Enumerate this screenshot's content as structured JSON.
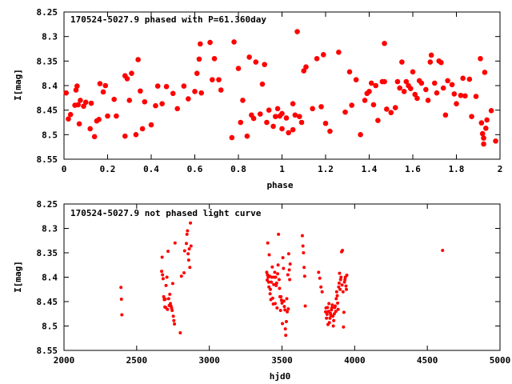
{
  "chart_data": [
    {
      "type": "scatter",
      "title": "170524-5027.9 phased with P=61.360day",
      "xlabel": "phase",
      "ylabel": "I[mag]",
      "xlim": [
        0,
        2
      ],
      "ylim": [
        8.25,
        8.55
      ],
      "y_inverted": true,
      "xticks": [
        "0",
        "0.2",
        "0.4",
        "0.6",
        "0.8",
        "1",
        "1.2",
        "1.4",
        "1.6",
        "1.8",
        "2"
      ],
      "yticks": [
        "8.25",
        "8.3",
        "8.35",
        "8.4",
        "8.45",
        "8.5",
        "8.55"
      ],
      "marker_color": "#ff0000",
      "marker": "filled-circle-large",
      "points": [
        [
          0.01,
          8.415
        ],
        [
          0.02,
          8.468
        ],
        [
          0.03,
          8.459
        ],
        [
          0.05,
          8.44
        ],
        [
          0.055,
          8.409
        ],
        [
          0.06,
          8.401
        ],
        [
          0.065,
          8.439
        ],
        [
          0.07,
          8.478
        ],
        [
          0.075,
          8.43
        ],
        [
          0.09,
          8.442
        ],
        [
          0.1,
          8.434
        ],
        [
          0.12,
          8.488
        ],
        [
          0.125,
          8.436
        ],
        [
          0.14,
          8.504
        ],
        [
          0.15,
          8.472
        ],
        [
          0.16,
          8.469
        ],
        [
          0.165,
          8.396
        ],
        [
          0.18,
          8.413
        ],
        [
          0.19,
          8.4
        ],
        [
          0.2,
          8.462
        ],
        [
          0.23,
          8.428
        ],
        [
          0.24,
          8.462
        ],
        [
          0.28,
          8.503
        ],
        [
          0.28,
          8.38
        ],
        [
          0.29,
          8.386
        ],
        [
          0.3,
          8.43
        ],
        [
          0.31,
          8.375
        ],
        [
          0.33,
          8.5
        ],
        [
          0.34,
          8.347
        ],
        [
          0.35,
          8.411
        ],
        [
          0.36,
          8.488
        ],
        [
          0.37,
          8.433
        ],
        [
          0.4,
          8.48
        ],
        [
          0.42,
          8.441
        ],
        [
          0.43,
          8.401
        ],
        [
          0.45,
          8.437
        ],
        [
          0.47,
          8.402
        ],
        [
          0.5,
          8.416
        ],
        [
          0.52,
          8.447
        ],
        [
          0.55,
          8.401
        ],
        [
          0.57,
          8.427
        ],
        [
          0.6,
          8.412
        ],
        [
          0.61,
          8.375
        ],
        [
          0.62,
          8.346
        ],
        [
          0.625,
          8.315
        ],
        [
          0.63,
          8.415
        ],
        [
          0.67,
          8.312
        ],
        [
          0.68,
          8.388
        ],
        [
          0.69,
          8.345
        ],
        [
          0.71,
          8.388
        ],
        [
          0.72,
          8.409
        ],
        [
          0.77,
          8.506
        ],
        [
          0.78,
          8.311
        ],
        [
          0.8,
          8.365
        ],
        [
          0.81,
          8.475
        ],
        [
          0.82,
          8.43
        ],
        [
          0.84,
          8.503
        ],
        [
          0.85,
          8.342
        ],
        [
          0.86,
          8.46
        ],
        [
          0.87,
          8.467
        ],
        [
          0.88,
          8.352
        ],
        [
          0.9,
          8.458
        ],
        [
          0.91,
          8.397
        ],
        [
          0.92,
          8.357
        ],
        [
          0.93,
          8.475
        ],
        [
          0.94,
          8.45
        ],
        [
          0.96,
          8.483
        ],
        [
          0.97,
          8.463
        ],
        [
          0.98,
          8.447
        ],
        [
          0.99,
          8.462
        ],
        [
          1.0,
          8.457
        ],
        [
          1.0,
          8.488
        ],
        [
          1.02,
          8.466
        ],
        [
          1.03,
          8.496
        ],
        [
          1.05,
          8.49
        ],
        [
          1.05,
          8.437
        ],
        [
          1.06,
          8.46
        ],
        [
          1.07,
          8.29
        ],
        [
          1.08,
          8.463
        ],
        [
          1.09,
          8.475
        ],
        [
          1.1,
          8.37
        ],
        [
          1.11,
          8.362
        ],
        [
          1.14,
          8.447
        ],
        [
          1.16,
          8.345
        ],
        [
          1.18,
          8.443
        ],
        [
          1.19,
          8.337
        ],
        [
          1.2,
          8.477
        ],
        [
          1.22,
          8.493
        ],
        [
          1.26,
          8.332
        ],
        [
          1.29,
          8.454
        ],
        [
          1.31,
          8.372
        ],
        [
          1.32,
          8.44
        ],
        [
          1.34,
          8.388
        ],
        [
          1.36,
          8.5
        ],
        [
          1.38,
          8.43
        ],
        [
          1.39,
          8.416
        ],
        [
          1.4,
          8.412
        ],
        [
          1.41,
          8.395
        ],
        [
          1.42,
          8.439
        ],
        [
          1.43,
          8.4
        ],
        [
          1.44,
          8.471
        ],
        [
          1.46,
          8.392
        ],
        [
          1.47,
          8.314
        ],
        [
          1.47,
          8.392
        ],
        [
          1.48,
          8.448
        ],
        [
          1.5,
          8.455
        ],
        [
          1.52,
          8.445
        ],
        [
          1.53,
          8.392
        ],
        [
          1.54,
          8.405
        ],
        [
          1.55,
          8.352
        ],
        [
          1.56,
          8.412
        ],
        [
          1.57,
          8.392
        ],
        [
          1.58,
          8.4
        ],
        [
          1.59,
          8.406
        ],
        [
          1.6,
          8.372
        ],
        [
          1.61,
          8.418
        ],
        [
          1.62,
          8.426
        ],
        [
          1.63,
          8.39
        ],
        [
          1.64,
          8.395
        ],
        [
          1.66,
          8.408
        ],
        [
          1.67,
          8.43
        ],
        [
          1.68,
          8.352
        ],
        [
          1.685,
          8.338
        ],
        [
          1.7,
          8.395
        ],
        [
          1.71,
          8.415
        ],
        [
          1.72,
          8.35
        ],
        [
          1.73,
          8.353
        ],
        [
          1.74,
          8.405
        ],
        [
          1.75,
          8.46
        ],
        [
          1.76,
          8.39
        ],
        [
          1.78,
          8.398
        ],
        [
          1.79,
          8.417
        ],
        [
          1.8,
          8.437
        ],
        [
          1.82,
          8.42
        ],
        [
          1.83,
          8.385
        ],
        [
          1.84,
          8.421
        ],
        [
          1.86,
          8.387
        ],
        [
          1.87,
          8.463
        ],
        [
          1.89,
          8.422
        ],
        [
          1.91,
          8.345
        ],
        [
          1.915,
          8.476
        ],
        [
          1.92,
          8.498
        ],
        [
          1.925,
          8.507
        ],
        [
          1.925,
          8.519
        ],
        [
          1.93,
          8.373
        ],
        [
          1.935,
          8.487
        ],
        [
          1.94,
          8.47
        ],
        [
          1.96,
          8.451
        ],
        [
          1.98,
          8.513
        ]
      ]
    },
    {
      "type": "scatter",
      "title": "170524-5027.9 not phased light curve",
      "xlabel": "hjd0",
      "ylabel": "I[mag]",
      "xlim": [
        2000,
        5000
      ],
      "ylim": [
        8.25,
        8.55
      ],
      "y_inverted": true,
      "xticks": [
        "2000",
        "2500",
        "3000",
        "3500",
        "4000",
        "4500",
        "5000"
      ],
      "yticks": [
        "8.25",
        "8.3",
        "8.35",
        "8.4",
        "8.45",
        "8.5",
        "8.55"
      ],
      "marker_color": "#ff0000",
      "marker": "filled-circle-small",
      "points": [
        [
          2392,
          8.421
        ],
        [
          2395,
          8.445
        ],
        [
          2398,
          8.477
        ],
        [
          2672,
          8.388
        ],
        [
          2675,
          8.359
        ],
        [
          2678,
          8.395
        ],
        [
          2682,
          8.403
        ],
        [
          2686,
          8.44
        ],
        [
          2690,
          8.446
        ],
        [
          2694,
          8.461
        ],
        [
          2697,
          8.445
        ],
        [
          2700,
          8.462
        ],
        [
          2702,
          8.417
        ],
        [
          2708,
          8.4
        ],
        [
          2712,
          8.466
        ],
        [
          2716,
          8.347
        ],
        [
          2720,
          8.444
        ],
        [
          2724,
          8.458
        ],
        [
          2728,
          8.435
        ],
        [
          2732,
          8.454
        ],
        [
          2736,
          8.459
        ],
        [
          2740,
          8.463
        ],
        [
          2744,
          8.468
        ],
        [
          2748,
          8.413
        ],
        [
          2752,
          8.48
        ],
        [
          2756,
          8.489
        ],
        [
          2760,
          8.496
        ],
        [
          2764,
          8.33
        ],
        [
          2800,
          8.514
        ],
        [
          2808,
          8.398
        ],
        [
          2826,
          8.391
        ],
        [
          2830,
          8.346
        ],
        [
          2842,
          8.331
        ],
        [
          2846,
          8.312
        ],
        [
          2850,
          8.305
        ],
        [
          2854,
          8.352
        ],
        [
          2858,
          8.365
        ],
        [
          2862,
          8.342
        ],
        [
          2866,
          8.38
        ],
        [
          2870,
          8.289
        ],
        [
          2874,
          8.336
        ],
        [
          3395,
          8.39
        ],
        [
          3398,
          8.406
        ],
        [
          3400,
          8.395
        ],
        [
          3402,
          8.33
        ],
        [
          3405,
          8.4
        ],
        [
          3408,
          8.41
        ],
        [
          3410,
          8.42
        ],
        [
          3412,
          8.354
        ],
        [
          3415,
          8.398
        ],
        [
          3418,
          8.434
        ],
        [
          3420,
          8.425
        ],
        [
          3423,
          8.446
        ],
        [
          3426,
          8.41
        ],
        [
          3430,
          8.4
        ],
        [
          3433,
          8.379
        ],
        [
          3436,
          8.443
        ],
        [
          3440,
          8.455
        ],
        [
          3443,
          8.415
        ],
        [
          3446,
          8.4
        ],
        [
          3450,
          8.39
        ],
        [
          3453,
          8.454
        ],
        [
          3456,
          8.4
        ],
        [
          3460,
          8.417
        ],
        [
          3463,
          8.412
        ],
        [
          3466,
          8.463
        ],
        [
          3470,
          8.393
        ],
        [
          3473,
          8.375
        ],
        [
          3476,
          8.312
        ],
        [
          3480,
          8.405
        ],
        [
          3483,
          8.423
        ],
        [
          3486,
          8.44
        ],
        [
          3490,
          8.468
        ],
        [
          3493,
          8.44
        ],
        [
          3496,
          8.447
        ],
        [
          3500,
          8.453
        ],
        [
          3503,
          8.495
        ],
        [
          3506,
          8.36
        ],
        [
          3510,
          8.382
        ],
        [
          3513,
          8.449
        ],
        [
          3516,
          8.46
        ],
        [
          3520,
          8.467
        ],
        [
          3523,
          8.506
        ],
        [
          3526,
          8.519
        ],
        [
          3530,
          8.491
        ],
        [
          3533,
          8.444
        ],
        [
          3536,
          8.471
        ],
        [
          3540,
          8.395
        ],
        [
          3543,
          8.465
        ],
        [
          3546,
          8.352
        ],
        [
          3550,
          8.385
        ],
        [
          3553,
          8.405
        ],
        [
          3556,
          8.373
        ],
        [
          3640,
          8.315
        ],
        [
          3644,
          8.336
        ],
        [
          3648,
          8.35
        ],
        [
          3652,
          8.38
        ],
        [
          3656,
          8.398
        ],
        [
          3660,
          8.459
        ],
        [
          3752,
          8.39
        ],
        [
          3760,
          8.402
        ],
        [
          3768,
          8.42
        ],
        [
          3776,
          8.43
        ],
        [
          3800,
          8.471
        ],
        [
          3803,
          8.463
        ],
        [
          3806,
          8.484
        ],
        [
          3810,
          8.476
        ],
        [
          3813,
          8.462
        ],
        [
          3816,
          8.497
        ],
        [
          3820,
          8.47
        ],
        [
          3823,
          8.454
        ],
        [
          3826,
          8.493
        ],
        [
          3830,
          8.484
        ],
        [
          3833,
          8.474
        ],
        [
          3836,
          8.478
        ],
        [
          3840,
          8.467
        ],
        [
          3843,
          8.463
        ],
        [
          3846,
          8.457
        ],
        [
          3850,
          8.48
        ],
        [
          3853,
          8.5
        ],
        [
          3856,
          8.489
        ],
        [
          3860,
          8.475
        ],
        [
          3863,
          8.462
        ],
        [
          3866,
          8.459
        ],
        [
          3870,
          8.47
        ],
        [
          3873,
          8.444
        ],
        [
          3876,
          8.43
        ],
        [
          3880,
          8.438
        ],
        [
          3883,
          8.453
        ],
        [
          3886,
          8.466
        ],
        [
          3890,
          8.42
        ],
        [
          3893,
          8.412
        ],
        [
          3896,
          8.392
        ],
        [
          3900,
          8.425
        ],
        [
          3903,
          8.405
        ],
        [
          3906,
          8.4
        ],
        [
          3910,
          8.348
        ],
        [
          3913,
          8.416
        ],
        [
          3916,
          8.345
        ],
        [
          3920,
          8.43
        ],
        [
          3923,
          8.502
        ],
        [
          3926,
          8.472
        ],
        [
          3930,
          8.41
        ],
        [
          3933,
          8.405
        ],
        [
          3936,
          8.4
        ],
        [
          3940,
          8.418
        ],
        [
          3943,
          8.425
        ],
        [
          3946,
          8.396
        ],
        [
          4605,
          8.345
        ]
      ]
    }
  ]
}
